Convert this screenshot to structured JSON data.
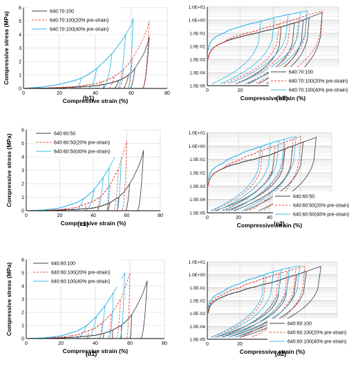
{
  "chart_data": [
    {
      "panel": "b1",
      "type": "line",
      "scale": "linear",
      "xlabel": "Compressive strain (%)",
      "ylabel": "Compressive stress (MPa)",
      "xlim": [
        0,
        80
      ],
      "ylim": [
        0,
        6
      ],
      "xticks": [
        "0",
        "20",
        "40",
        "60",
        "80"
      ],
      "yticks": [
        "0",
        "1",
        "2",
        "3",
        "4",
        "5",
        "6"
      ],
      "grid": true,
      "legend_position": "top-left",
      "caption": "(b1)",
      "series": [
        {
          "name": "640:70:100",
          "style": "solid",
          "color": "#404040",
          "loading_x": [
            0,
            10,
            20,
            30,
            40,
            45,
            50,
            55,
            58,
            61,
            64,
            67,
            69,
            70
          ],
          "loading_y": [
            0,
            0.02,
            0.05,
            0.1,
            0.2,
            0.3,
            0.45,
            0.7,
            0.95,
            1.3,
            1.9,
            2.6,
            3.3,
            3.85
          ],
          "peak_stresses": [
            0.3,
            0.6,
            1.0,
            1.5,
            3.85
          ],
          "unload_x": [
            44,
            50,
            55,
            59,
            66
          ]
        },
        {
          "name": "640:70:100(20% pre-strain)",
          "style": "dashed",
          "color": "#e8433a",
          "loading_x": [
            0,
            10,
            20,
            30,
            40,
            45,
            50,
            55,
            58,
            61,
            64,
            67,
            69,
            70
          ],
          "loading_y": [
            0,
            0.02,
            0.07,
            0.15,
            0.35,
            0.55,
            0.85,
            1.3,
            1.75,
            2.3,
            3.0,
            3.8,
            4.5,
            5.0
          ],
          "peak_stresses": [
            0.5,
            0.9,
            1.4,
            2.2,
            5.0
          ],
          "unload_x": [
            40,
            47,
            53,
            58,
            66
          ]
        },
        {
          "name": "640:70:100(40% pre-strain)",
          "style": "solid",
          "color": "#33b8e8",
          "loading_x": [
            0,
            10,
            20,
            30,
            35,
            40,
            45,
            50,
            55,
            60,
            61
          ],
          "loading_y": [
            0,
            0.1,
            0.3,
            0.65,
            0.95,
            1.4,
            2.0,
            2.7,
            3.6,
            4.7,
            5.2
          ],
          "peak_stresses": [
            0.8,
            1.5,
            2.6,
            4.0,
            5.2
          ],
          "unload_x": [
            28,
            36,
            44,
            52,
            58
          ]
        }
      ]
    },
    {
      "panel": "b2",
      "type": "line",
      "scale": "log",
      "xlabel": "Compressive strain (%)",
      "ylabel": "",
      "xlim": [
        0,
        80
      ],
      "ylim": [
        1e-05,
        10
      ],
      "xticks": [
        "0",
        "20",
        "40",
        "60",
        "80"
      ],
      "yticks": [
        "1.0E-05",
        "1.0E-04",
        "1.0E-03",
        "1.0E-02",
        "1.0E-01",
        "1.0E+00",
        "1.0E+01"
      ],
      "grid": true,
      "legend_position": "bottom-right",
      "caption": "(b2)",
      "series": [
        {
          "name": "640:70:100",
          "style": "solid",
          "color": "#404040",
          "loading_x": [
            0,
            10,
            20,
            30,
            40,
            45,
            50,
            55,
            58,
            61,
            64,
            67,
            69,
            70
          ],
          "loading_y": [
            0.0001,
            0.02,
            0.05,
            0.1,
            0.2,
            0.3,
            0.45,
            0.7,
            0.95,
            1.3,
            1.9,
            2.6,
            3.3,
            3.85
          ],
          "peak_stresses": [
            0.3,
            0.6,
            1.0,
            1.5,
            3.85
          ],
          "unload_x": [
            18,
            25,
            31,
            36,
            47
          ]
        },
        {
          "name": "640:70:100(20% pre-strain)",
          "style": "dashed",
          "color": "#e8433a",
          "loading_x": [
            0,
            10,
            20,
            30,
            40,
            45,
            50,
            55,
            58,
            61,
            64,
            67,
            69,
            70
          ],
          "loading_y": [
            0.0001,
            0.02,
            0.07,
            0.15,
            0.35,
            0.55,
            0.85,
            1.3,
            1.75,
            2.3,
            3.0,
            3.8,
            4.5,
            5.0
          ],
          "peak_stresses": [
            0.5,
            0.9,
            1.4,
            2.2,
            5.0
          ],
          "unload_x": [
            10,
            17,
            23,
            29,
            38
          ]
        },
        {
          "name": "640:70:100(40% pre-strain)",
          "style": "solid",
          "color": "#33b8e8",
          "loading_x": [
            0,
            10,
            20,
            30,
            35,
            40,
            45,
            50,
            55,
            60,
            61
          ],
          "loading_y": [
            0.0001,
            0.1,
            0.3,
            0.65,
            0.95,
            1.4,
            2.0,
            2.7,
            3.6,
            4.7,
            5.2
          ],
          "peak_stresses": [
            0.8,
            1.5,
            2.6,
            4.0,
            5.2
          ],
          "unload_x": [
            3,
            8,
            13,
            18,
            24
          ]
        }
      ]
    },
    {
      "panel": "c1",
      "type": "line",
      "scale": "linear",
      "xlabel": "Compressive strain (%)",
      "ylabel": "Compressive stress (MPa)",
      "xlim": [
        0,
        80
      ],
      "ylim": [
        0,
        6
      ],
      "xticks": [
        "0",
        "20",
        "40",
        "60",
        "80"
      ],
      "yticks": [
        "0",
        "1",
        "2",
        "3",
        "4",
        "5",
        "6"
      ],
      "grid": true,
      "legend_position": "top-left",
      "caption": "(c1)",
      "series": [
        {
          "name": "640:60:50",
          "style": "solid",
          "color": "#404040",
          "loading_x": [
            0,
            10,
            20,
            30,
            40,
            45,
            50,
            55,
            58,
            61,
            64,
            67,
            69,
            70
          ],
          "loading_y": [
            0,
            0.02,
            0.05,
            0.1,
            0.2,
            0.35,
            0.6,
            1.0,
            1.35,
            1.85,
            2.5,
            3.3,
            4.0,
            4.5
          ],
          "peak_stresses": [
            0.3,
            0.6,
            1.0,
            2.0,
            4.5
          ],
          "unload_x": [
            42,
            48,
            54,
            59,
            66
          ]
        },
        {
          "name": "640:60:50(20% pre-strain)",
          "style": "dashed",
          "color": "#e8433a",
          "loading_x": [
            0,
            10,
            20,
            30,
            40,
            45,
            50,
            55,
            58,
            60
          ],
          "loading_y": [
            0,
            0.02,
            0.08,
            0.25,
            0.7,
            1.1,
            1.9,
            3.1,
            4.3,
            5.2
          ],
          "peak_stresses": [
            0.5,
            1.0,
            1.9,
            3.1,
            5.2
          ],
          "unload_x": [
            35,
            42,
            48,
            52,
            57
          ]
        },
        {
          "name": "640:60:50(40% pre-strain)",
          "style": "solid",
          "color": "#33b8e8",
          "loading_x": [
            0,
            10,
            20,
            30,
            35,
            40,
            45,
            50,
            55,
            57
          ],
          "loading_y": [
            0,
            0.05,
            0.2,
            0.6,
            0.95,
            1.5,
            2.3,
            3.3,
            4.5,
            5.0
          ],
          "peak_stresses": [
            0.9,
            1.6,
            2.5,
            3.2,
            5.0
          ],
          "unload_x": [
            28,
            35,
            42,
            48,
            54
          ]
        }
      ]
    },
    {
      "panel": "c2",
      "type": "line",
      "scale": "log",
      "xlabel": "Compressive strain (%)",
      "ylabel": "",
      "xlim": [
        0,
        80
      ],
      "ylim": [
        1e-05,
        10
      ],
      "xticks": [
        "0",
        "20",
        "40",
        "60",
        "80"
      ],
      "yticks": [
        "1.0E-05",
        "1.0E-04",
        "1.0E-03",
        "1.0E-02",
        "1.0E-01",
        "1.0E+00",
        "1.0E+01"
      ],
      "grid": true,
      "legend_position": "bottom-right",
      "caption": "(c2)",
      "series": [
        {
          "name": "640:60:50",
          "style": "solid",
          "color": "#404040",
          "loading_x": [
            0,
            10,
            20,
            30,
            40,
            45,
            50,
            55,
            58,
            61,
            64,
            67,
            69,
            70
          ],
          "loading_y": [
            0.0001,
            0.02,
            0.05,
            0.1,
            0.2,
            0.35,
            0.6,
            1.0,
            1.35,
            1.85,
            2.5,
            3.3,
            4.0,
            4.5
          ],
          "peak_stresses": [
            0.3,
            0.6,
            1.0,
            2.0,
            4.5
          ],
          "unload_x": [
            5,
            12,
            17,
            24,
            33
          ]
        },
        {
          "name": "640:60:50(20% pre-strain)",
          "style": "dashed",
          "color": "#e8433a",
          "loading_x": [
            0,
            10,
            20,
            30,
            40,
            45,
            50,
            55,
            58,
            60
          ],
          "loading_y": [
            0.0001,
            0.02,
            0.08,
            0.25,
            0.7,
            1.1,
            1.9,
            3.1,
            4.3,
            5.2
          ],
          "peak_stresses": [
            0.5,
            1.0,
            1.9,
            3.1,
            5.2
          ],
          "unload_x": [
            3,
            9,
            14,
            27,
            36
          ]
        },
        {
          "name": "640:60:50(40% pre-strain)",
          "style": "solid",
          "color": "#33b8e8",
          "loading_x": [
            0,
            10,
            20,
            30,
            35,
            40,
            45,
            50,
            55,
            57
          ],
          "loading_y": [
            0.0001,
            0.05,
            0.2,
            0.6,
            0.95,
            1.5,
            2.3,
            3.3,
            4.5,
            5.0
          ],
          "peak_stresses": [
            0.9,
            1.6,
            2.5,
            3.2,
            5.0
          ],
          "unload_x": [
            2,
            6,
            10,
            15,
            22
          ]
        }
      ]
    },
    {
      "panel": "d1",
      "type": "line",
      "scale": "linear",
      "xlabel": "Compressive strain (%)",
      "ylabel": "Compressive stress (MPa)",
      "xlim": [
        0,
        80
      ],
      "ylim": [
        0,
        6
      ],
      "xticks": [
        "0",
        "20",
        "40",
        "60",
        "80"
      ],
      "yticks": [
        "0",
        "1",
        "2",
        "3",
        "4",
        "5",
        "6"
      ],
      "grid": true,
      "legend_position": "top-left",
      "caption": "(d1)",
      "series": [
        {
          "name": "640:60:100",
          "style": "solid",
          "color": "#404040",
          "loading_x": [
            0,
            10,
            20,
            30,
            40,
            45,
            50,
            55,
            58,
            61,
            64,
            67,
            69,
            70
          ],
          "loading_y": [
            0,
            0.02,
            0.05,
            0.12,
            0.25,
            0.4,
            0.65,
            1.0,
            1.35,
            1.8,
            2.5,
            3.3,
            4.0,
            4.4
          ],
          "peak_stresses": [
            0.4,
            0.65,
            1.0,
            1.8,
            4.4
          ],
          "unload_x": [
            44,
            50,
            55,
            60,
            66
          ]
        },
        {
          "name": "640:60:100(20% pre-strain)",
          "style": "dashed",
          "color": "#e8433a",
          "loading_x": [
            0,
            10,
            20,
            30,
            40,
            45,
            50,
            55,
            58,
            60
          ],
          "loading_y": [
            0,
            0.03,
            0.1,
            0.3,
            0.8,
            1.3,
            2.0,
            3.1,
            4.2,
            5.0
          ],
          "peak_stresses": [
            0.6,
            1.2,
            1.9,
            3.0,
            5.0
          ],
          "unload_x": [
            35,
            42,
            47,
            52,
            58
          ]
        },
        {
          "name": "640:60:100(40% pre-strain)",
          "style": "solid",
          "color": "#33b8e8",
          "loading_x": [
            0,
            10,
            20,
            30,
            35,
            40,
            45,
            50,
            55,
            57
          ],
          "loading_y": [
            0,
            0.05,
            0.2,
            0.6,
            1.0,
            1.6,
            2.4,
            3.4,
            4.5,
            5.0
          ],
          "peak_stresses": [
            1.0,
            1.7,
            2.5,
            3.5,
            5.0
          ],
          "unload_x": [
            28,
            35,
            42,
            48,
            54
          ]
        }
      ]
    },
    {
      "panel": "d2",
      "type": "line",
      "scale": "log",
      "xlabel": "Compressive strain (%)",
      "ylabel": "",
      "xlim": [
        0,
        80
      ],
      "ylim": [
        1e-05,
        10
      ],
      "xticks": [
        "0",
        "20",
        "40",
        "60",
        "80"
      ],
      "yticks": [
        "1.0E-05",
        "1.0E-04",
        "1.0E-03",
        "1.0E-02",
        "1.0E-01",
        "1.0E+00",
        "1.0E+01"
      ],
      "grid": true,
      "legend_position": "bottom-right",
      "caption": "(d2)",
      "series": [
        {
          "name": "640:60:100",
          "style": "solid",
          "color": "#404040",
          "loading_x": [
            0,
            10,
            20,
            30,
            40,
            45,
            50,
            55,
            58,
            61,
            64,
            67,
            69,
            70
          ],
          "loading_y": [
            0.0001,
            0.02,
            0.05,
            0.12,
            0.25,
            0.4,
            0.65,
            1.0,
            1.35,
            1.8,
            2.5,
            3.3,
            4.0,
            4.4
          ],
          "peak_stresses": [
            0.4,
            0.65,
            1.0,
            1.8,
            4.4
          ],
          "unload_x": [
            5,
            9,
            13,
            17,
            20
          ]
        },
        {
          "name": "640:60:100(20% pre-strain)",
          "style": "dashed",
          "color": "#e8433a",
          "loading_x": [
            0,
            10,
            20,
            30,
            40,
            45,
            50,
            55,
            58,
            60
          ],
          "loading_y": [
            0.0001,
            0.03,
            0.1,
            0.3,
            0.8,
            1.3,
            2.0,
            3.1,
            4.2,
            5.0
          ],
          "peak_stresses": [
            0.6,
            1.2,
            1.9,
            3.0,
            5.0
          ],
          "unload_x": [
            3,
            8,
            13,
            20,
            27
          ]
        },
        {
          "name": "640:60:100(40% pre-strain)",
          "style": "solid",
          "color": "#33b8e8",
          "loading_x": [
            0,
            10,
            20,
            30,
            35,
            40,
            45,
            50,
            55,
            57
          ],
          "loading_y": [
            0.0001,
            0.05,
            0.2,
            0.6,
            1.0,
            1.6,
            2.4,
            3.4,
            4.5,
            5.0
          ],
          "peak_stresses": [
            1.0,
            1.7,
            2.5,
            3.5,
            5.0
          ],
          "unload_x": [
            2,
            5,
            9,
            13,
            17
          ]
        }
      ]
    }
  ]
}
